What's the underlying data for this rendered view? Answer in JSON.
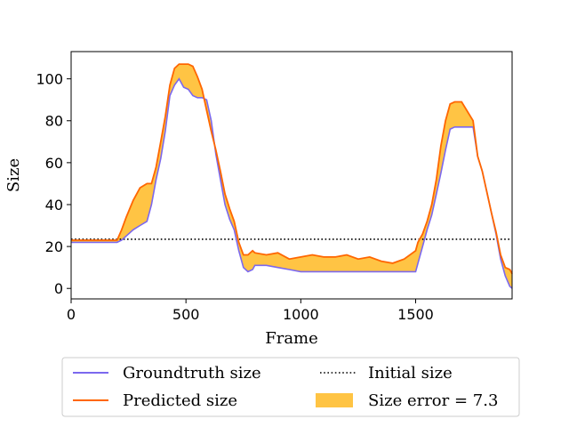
{
  "chart_data": {
    "type": "line",
    "xlabel": "Frame",
    "ylabel": "Size",
    "xlim": [
      0,
      1920
    ],
    "ylim": [
      -5,
      113
    ],
    "x_ticks": [
      0,
      500,
      1000,
      1500
    ],
    "y_ticks": [
      0,
      20,
      40,
      60,
      80,
      100
    ],
    "legend_position": "bottom (below plot, two columns)",
    "colors": {
      "groundtruth": "#7b68ee",
      "predicted": "#ff6600",
      "error_fill": "#ffc444",
      "initial": "#000000"
    },
    "initial_size": 23.5,
    "series": [
      {
        "name": "Groundtruth size",
        "x": [
          0,
          100,
          200,
          220,
          240,
          270,
          300,
          330,
          350,
          370,
          390,
          410,
          430,
          450,
          470,
          490,
          510,
          530,
          550,
          570,
          590,
          610,
          630,
          650,
          670,
          690,
          710,
          730,
          750,
          770,
          790,
          800,
          850,
          900,
          950,
          1000,
          1050,
          1100,
          1150,
          1200,
          1250,
          1300,
          1350,
          1400,
          1450,
          1500,
          1510,
          1530,
          1550,
          1570,
          1590,
          1610,
          1630,
          1650,
          1670,
          1700,
          1750,
          1770,
          1790,
          1810,
          1830,
          1850,
          1870,
          1890,
          1910,
          1920
        ],
        "values": [
          22,
          22,
          22,
          23,
          25,
          28,
          30,
          32,
          40,
          52,
          62,
          75,
          92,
          97,
          100,
          96,
          95,
          92,
          91,
          91,
          90,
          80,
          64,
          52,
          40,
          33,
          28,
          18,
          10,
          8,
          9,
          11,
          11,
          10,
          9,
          8,
          8,
          8,
          8,
          8,
          8,
          8,
          8,
          8,
          8,
          8,
          12,
          20,
          28,
          35,
          45,
          55,
          66,
          76,
          77,
          77,
          77,
          63,
          56,
          46,
          36,
          26,
          14,
          6,
          1,
          0
        ]
      },
      {
        "name": "Predicted size",
        "x": [
          0,
          100,
          200,
          220,
          240,
          270,
          300,
          330,
          350,
          370,
          390,
          410,
          430,
          450,
          470,
          490,
          510,
          530,
          550,
          570,
          590,
          610,
          630,
          650,
          670,
          690,
          710,
          730,
          750,
          770,
          790,
          800,
          850,
          900,
          950,
          1000,
          1050,
          1100,
          1150,
          1200,
          1250,
          1300,
          1350,
          1400,
          1450,
          1500,
          1510,
          1530,
          1550,
          1570,
          1590,
          1610,
          1630,
          1650,
          1670,
          1700,
          1750,
          1770,
          1790,
          1810,
          1830,
          1850,
          1870,
          1890,
          1910,
          1920
        ],
        "values": [
          23,
          23,
          23,
          28,
          34,
          42,
          48,
          50,
          50,
          58,
          70,
          82,
          97,
          105,
          107,
          107,
          107,
          106,
          101,
          95,
          85,
          75,
          66,
          56,
          45,
          38,
          32,
          22,
          16,
          16,
          18,
          17,
          16,
          17,
          14,
          15,
          16,
          15,
          15,
          16,
          14,
          15,
          13,
          12,
          14,
          18,
          22,
          26,
          32,
          40,
          52,
          68,
          80,
          88,
          89,
          89,
          80,
          63,
          56,
          46,
          36,
          27,
          16,
          10,
          9,
          7
        ]
      },
      {
        "name": "Initial size",
        "x": [
          0,
          1920
        ],
        "values": [
          23.5,
          23.5
        ]
      }
    ],
    "legend": [
      {
        "label": "Groundtruth size",
        "kind": "line",
        "color": "#7b68ee"
      },
      {
        "label": "Initial size",
        "kind": "dotted",
        "color": "#000000"
      },
      {
        "label": "Predicted size",
        "kind": "line",
        "color": "#ff6600"
      },
      {
        "label": "Size error = 7.3",
        "kind": "patch",
        "color": "#ffc444"
      }
    ]
  }
}
